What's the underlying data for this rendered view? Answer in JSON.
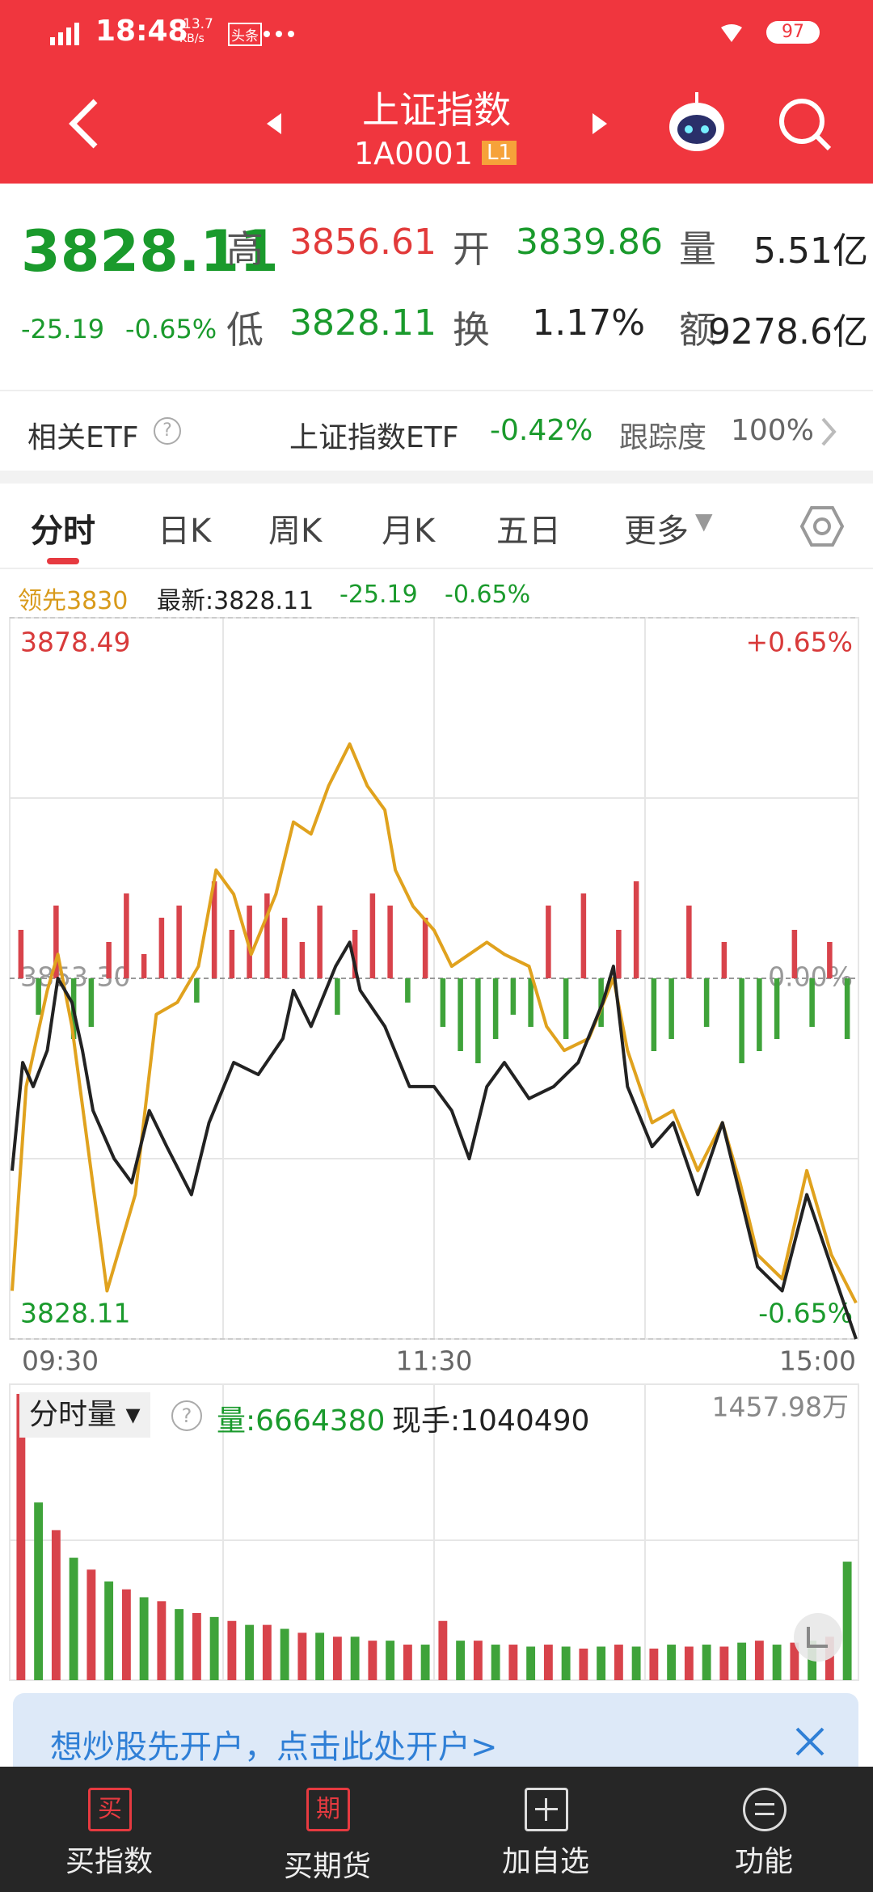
{
  "status_bar": {
    "time": "18:48",
    "speed": "13.7",
    "speed_unit": "KB/s",
    "app": "头条",
    "battery": "97"
  },
  "header": {
    "title": "上证指数",
    "code": "1A0001",
    "level": "L1"
  },
  "quote": {
    "price": "3828.11",
    "change": "-25.19",
    "change_pct": "-0.65%",
    "fields": [
      {
        "label": "高",
        "value": "3856.61"
      },
      {
        "label": "开",
        "value": "3839.86"
      },
      {
        "label": "量",
        "value": "5.51亿"
      },
      {
        "label": "低",
        "value": "3828.11"
      },
      {
        "label": "换",
        "value": "1.17%"
      },
      {
        "label": "额",
        "value": "9278.6亿"
      }
    ]
  },
  "etf": {
    "label": "相关ETF",
    "name": "上证指数ETF",
    "change": "-0.42%",
    "tracking_label": "跟踪度",
    "tracking": "100%"
  },
  "tabs": [
    "分时",
    "日K",
    "周K",
    "月K",
    "五日",
    "更多"
  ],
  "legend": {
    "lead": "领先3830",
    "latest": "最新:3828.11",
    "change": "-25.19",
    "change_pct": "-0.65%"
  },
  "chart_data": {
    "type": "line",
    "xlim": [
      0,
      240
    ],
    "xticks": [
      {
        "value": 0,
        "label": "09:30"
      },
      {
        "value": 120,
        "label": "11:30"
      },
      {
        "value": 240,
        "label": "15:00"
      }
    ],
    "ylim": [
      3828.11,
      3878.49
    ],
    "yticks": [
      3878.49,
      {
        "value": 3853.3,
        "label": "3853.30"
      },
      3828.11
    ],
    "y2lim": [
      -0.65,
      0.65
    ],
    "y2ticks": [
      {
        "value": 0.65,
        "label": "+0.65%"
      },
      {
        "value": 0,
        "label": "0.00%"
      },
      {
        "value": -0.65,
        "label": "-0.65%"
      }
    ],
    "series": [
      {
        "color": "#e0a21e",
        "x": [
          0,
          4,
          10,
          13,
          17,
          22,
          27,
          30,
          35,
          41,
          47,
          53,
          58,
          63,
          68,
          75,
          80,
          85,
          90,
          96,
          101,
          106,
          109,
          114,
          120,
          125,
          130,
          135,
          140,
          147,
          152,
          157,
          164,
          171,
          175,
          182,
          188,
          195,
          202,
          207,
          212,
          219,
          226,
          233,
          240
        ],
        "values": [
          3831.47,
          3845.74,
          3852.46,
          3854.98,
          3849.94,
          3840.7,
          3831.47,
          3833.99,
          3838.19,
          3850.78,
          3851.62,
          3854.14,
          3860.86,
          3859.18,
          3854.98,
          3859.18,
          3864.22,
          3863.38,
          3866.74,
          3869.67,
          3866.74,
          3865.06,
          3860.86,
          3858.34,
          3856.66,
          3854.14,
          3854.98,
          3855.82,
          3854.98,
          3854.14,
          3849.94,
          3848.26,
          3849.1,
          3853.3,
          3848.26,
          3843.22,
          3844.06,
          3839.87,
          3843.22,
          3839.03,
          3833.99,
          3832.31,
          3839.87,
          3833.99,
          3830.63
        ]
      },
      {
        "color": "#222222",
        "x": [
          0,
          3,
          6,
          10,
          13,
          17,
          20,
          23,
          29,
          34,
          39,
          44,
          51,
          56,
          63,
          70,
          77,
          80,
          85,
          92,
          96,
          99,
          106,
          113,
          120,
          125,
          130,
          135,
          140,
          147,
          154,
          161,
          168,
          171,
          175,
          182,
          188,
          195,
          202,
          207,
          212,
          219,
          226,
          233,
          240
        ],
        "values": [
          3839.87,
          3847.42,
          3845.74,
          3848.26,
          3853.3,
          3851.62,
          3848.26,
          3844.06,
          3840.7,
          3839.03,
          3844.06,
          3841.54,
          3838.19,
          3843.22,
          3847.42,
          3846.58,
          3849.1,
          3852.46,
          3849.94,
          3854.14,
          3855.82,
          3852.46,
          3849.94,
          3845.74,
          3845.74,
          3844.06,
          3840.7,
          3845.74,
          3847.42,
          3844.9,
          3845.74,
          3847.42,
          3851.62,
          3854.14,
          3845.74,
          3841.54,
          3843.22,
          3838.19,
          3843.22,
          3838.19,
          3833.15,
          3831.47,
          3838.19,
          3833.15,
          3828.11
        ]
      }
    ],
    "breadth": {
      "ylim": [
        -100,
        100
      ],
      "up_color": "#d8434b",
      "down_color": "#3fa33a",
      "values": [
        40,
        -30,
        60,
        -50,
        -40,
        30,
        70,
        20,
        50,
        60,
        -20,
        80,
        40,
        60,
        70,
        50,
        30,
        60,
        -30,
        40,
        70,
        60,
        -20,
        50,
        -40,
        -60,
        -70,
        -50,
        -30,
        -40,
        60,
        -50,
        70,
        -40,
        40,
        80,
        -60,
        -50,
        60,
        -40,
        30,
        -70,
        -60,
        -50,
        40,
        -40,
        30,
        -50
      ]
    },
    "volume": {
      "ylim": [
        0,
        1457.98
      ],
      "yticks": [
        {
          "value": 1457.98,
          "label": "1457.98万"
        }
      ],
      "values": [
        1450,
        900,
        760,
        620,
        560,
        500,
        460,
        420,
        400,
        360,
        340,
        320,
        300,
        280,
        280,
        260,
        240,
        240,
        220,
        220,
        200,
        200,
        180,
        180,
        300,
        200,
        200,
        180,
        180,
        170,
        180,
        170,
        160,
        170,
        180,
        170,
        160,
        180,
        170,
        180,
        170,
        190,
        200,
        180,
        190,
        200,
        220,
        600
      ]
    }
  },
  "volume_panel": {
    "selector": "分时量",
    "volume": "量:6664380",
    "hand": "现手:1040490"
  },
  "banner": "想炒股先开户，点击此处开户>",
  "nav": [
    {
      "icon": "买",
      "label": "买指数"
    },
    {
      "icon": "期",
      "label": "买期货"
    },
    {
      "label": "加自选"
    },
    {
      "label": "功能"
    }
  ]
}
